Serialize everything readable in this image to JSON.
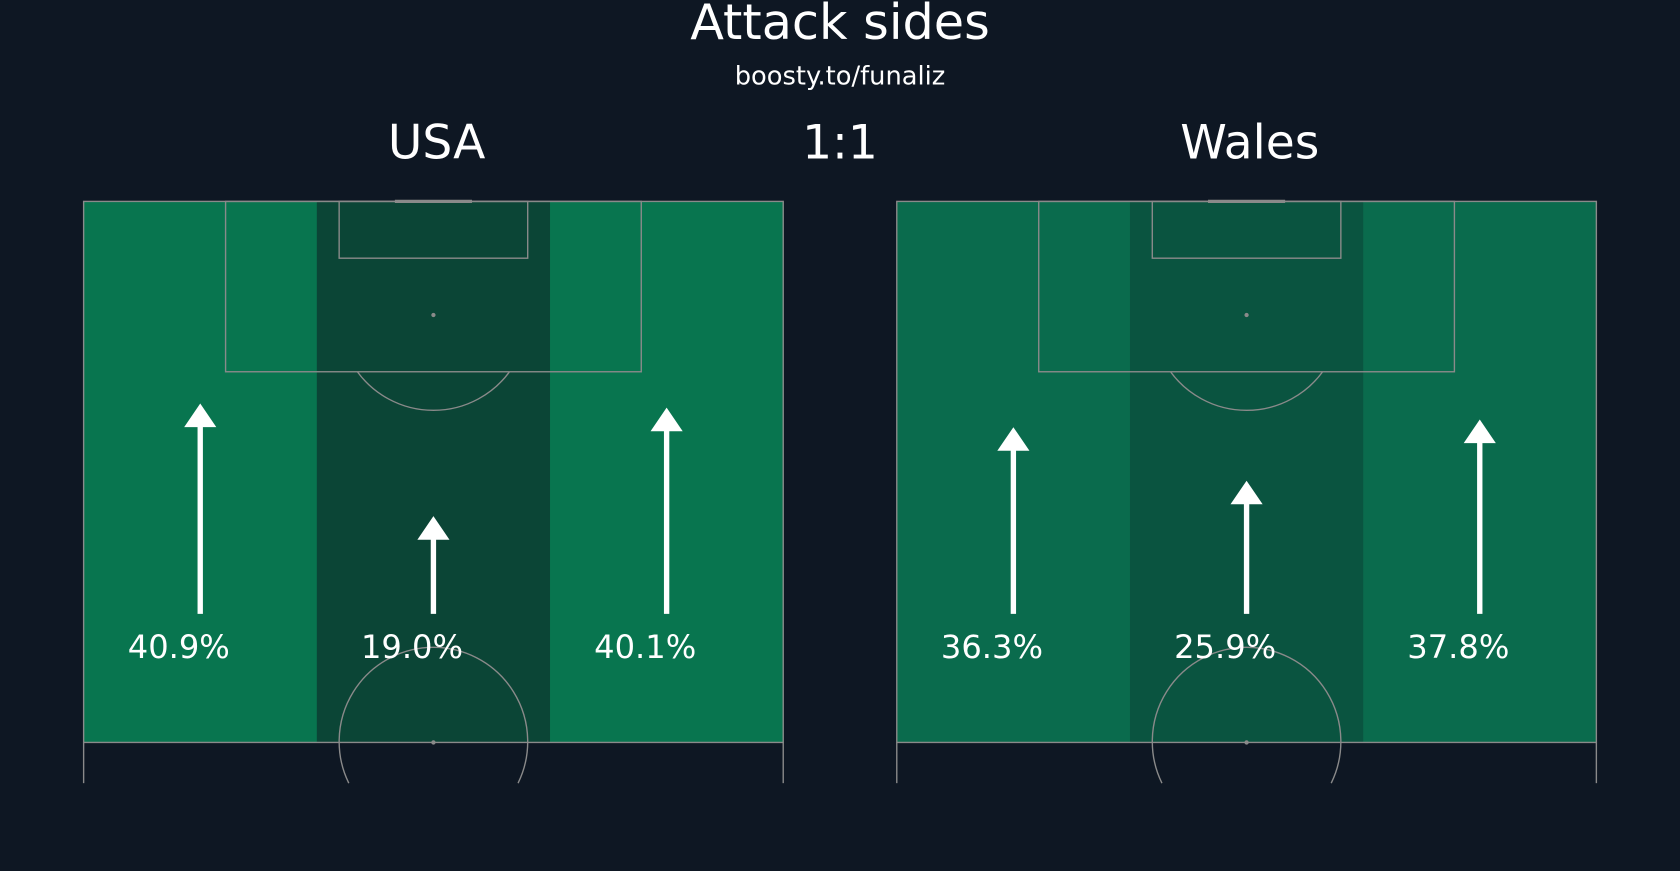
{
  "title": "Attack sides",
  "subtitle": "boosty.to/funaliz",
  "score": "1:1",
  "chart_data": [
    {
      "type": "arrow",
      "title": "USA",
      "values": [
        40.9,
        19.0,
        40.1
      ],
      "value_labels": [
        "40.9%",
        "19.0%",
        "40.1%"
      ],
      "colors": [
        "#08754f",
        "#0b4536",
        "#08754f"
      ]
    },
    {
      "type": "arrow",
      "title": "Wales",
      "values": [
        36.3,
        25.9,
        37.8
      ],
      "value_labels": [
        "36.3%",
        "25.9%",
        "37.8%"
      ],
      "colors": [
        "#0a6b4d",
        "#0a5440",
        "#0a6b4d"
      ]
    }
  ]
}
